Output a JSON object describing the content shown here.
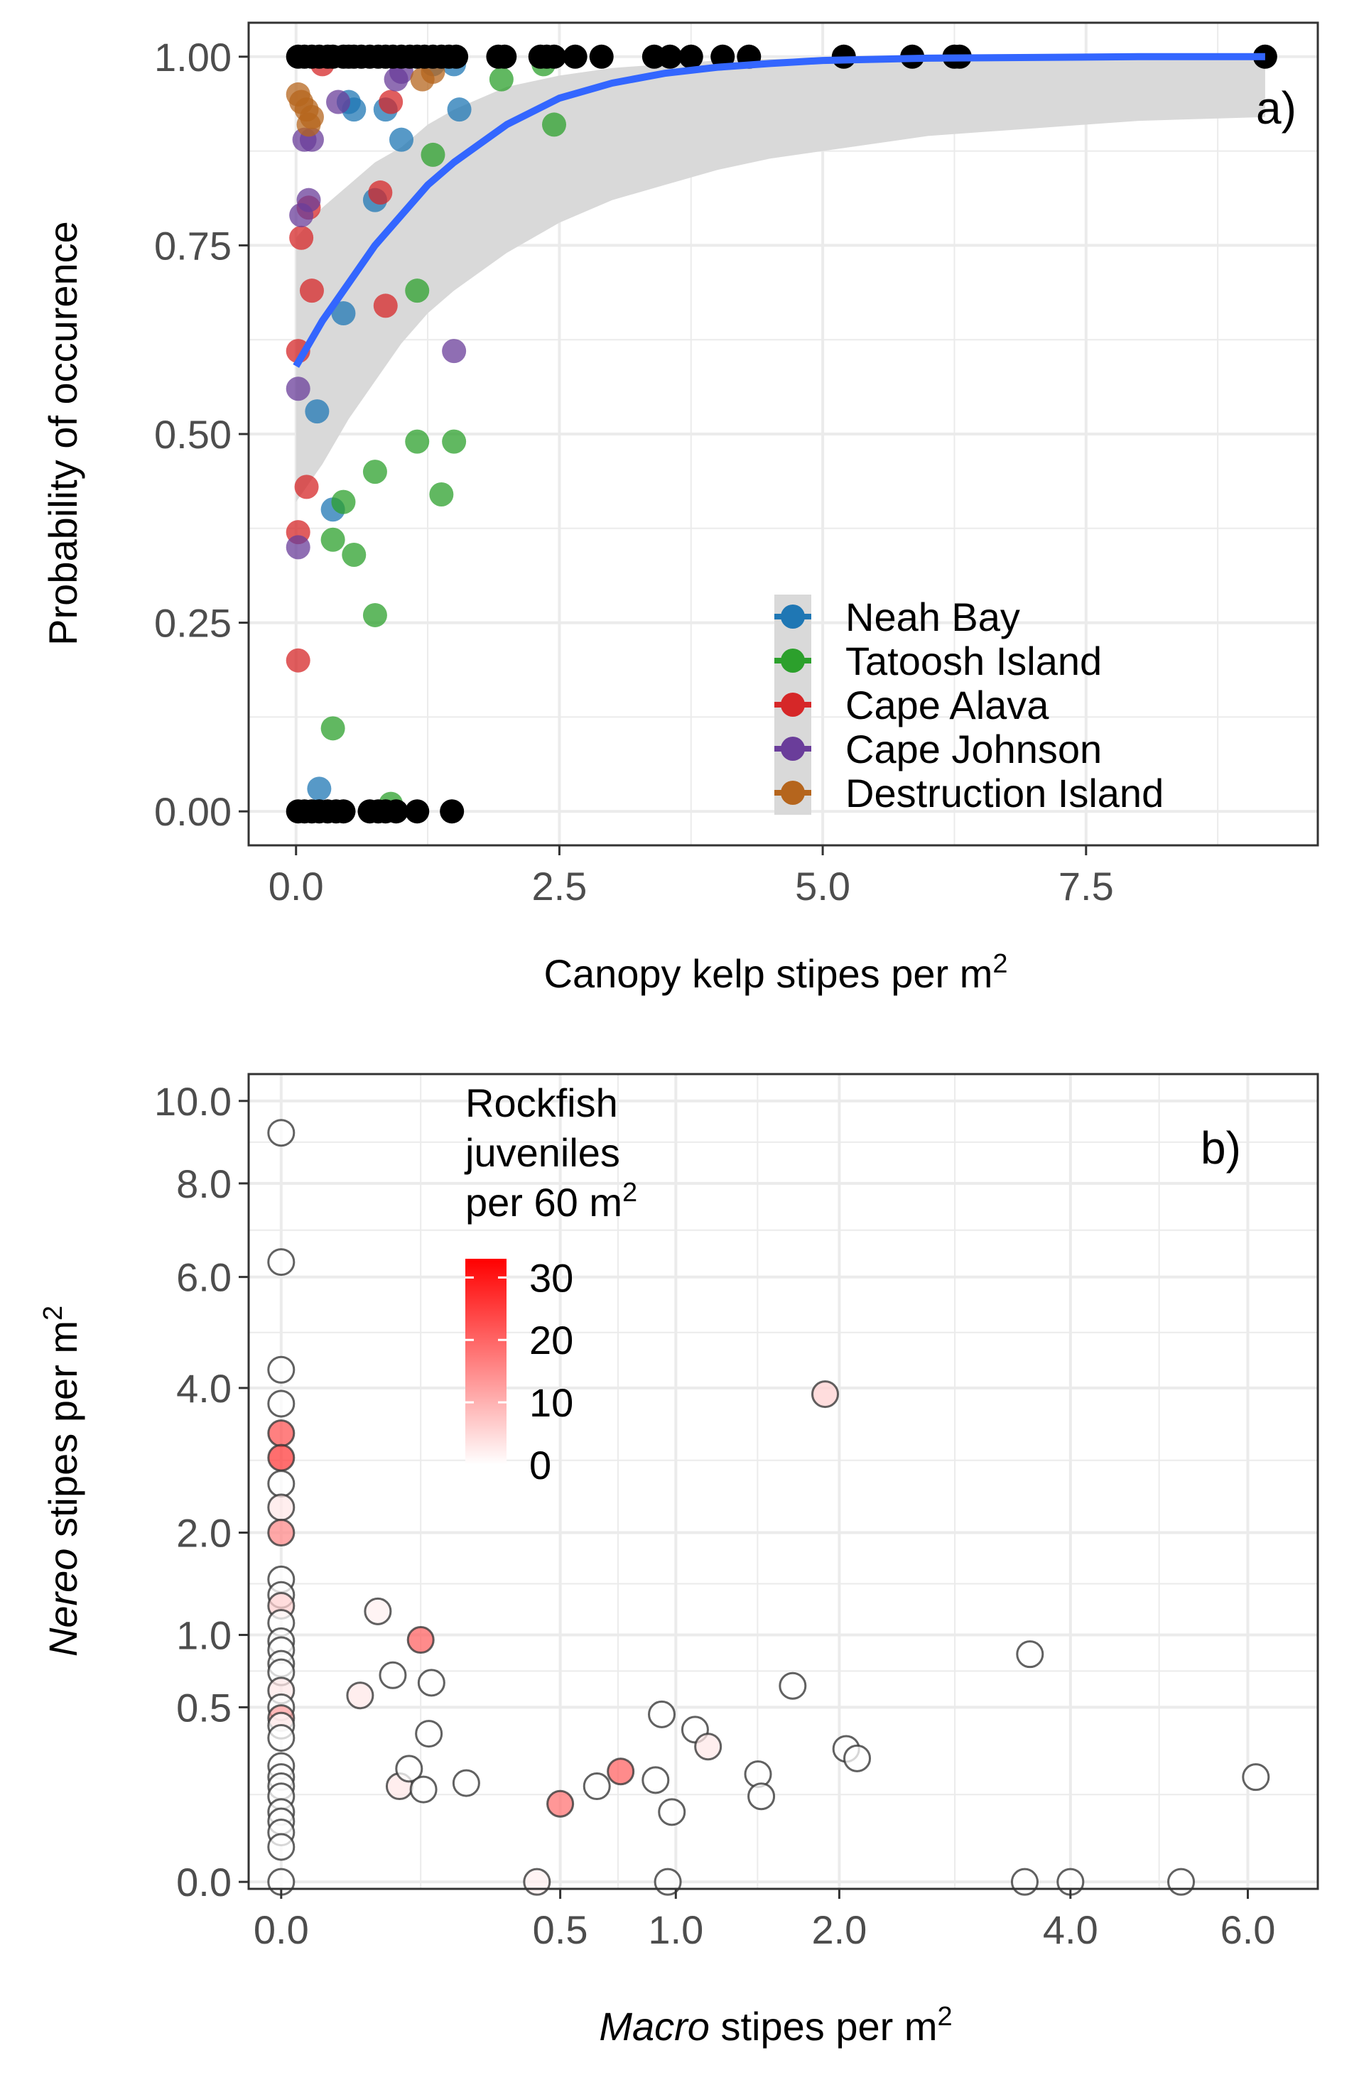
{
  "chart_data": [
    {
      "type": "scatter",
      "panel_label": "a)",
      "xlabel": "Canopy kelp stipes per m",
      "xlabel_superscript": "2",
      "ylabel": "Probability of occurence",
      "xlim": [
        -0.45,
        9.7
      ],
      "ylim": [
        -0.045,
        1.045
      ],
      "x_ticks": [
        0,
        2.5,
        5,
        7.5
      ],
      "x_tick_labels": [
        "0.0",
        "2.5",
        "5.0",
        "7.5"
      ],
      "y_ticks": [
        0,
        0.25,
        0.5,
        0.75,
        1
      ],
      "y_tick_labels": [
        "0.00",
        "0.25",
        "0.50",
        "0.75",
        "1.00"
      ],
      "grid": true,
      "legend_position": "bottom-right",
      "colors": {
        "observed": "#000000",
        "fit_line": "#3366FF",
        "ribbon": "#d9d9d9"
      },
      "series": [
        {
          "name": "Neah Bay",
          "color": "#1f77b4",
          "points": [
            [
              0.22,
              0.03
            ],
            [
              0.2,
              0.53
            ],
            [
              0.35,
              0.4
            ],
            [
              0.45,
              0.66
            ],
            [
              0.55,
              0.93
            ],
            [
              0.75,
              0.81
            ],
            [
              0.85,
              0.93
            ],
            [
              1.0,
              0.89
            ],
            [
              1.3,
              0.99
            ],
            [
              1.55,
              0.93
            ],
            [
              1.5,
              0.99
            ],
            [
              0.5,
              0.94
            ]
          ]
        },
        {
          "name": "Tatoosh Island",
          "color": "#2ca02c",
          "points": [
            [
              0.35,
              0.11
            ],
            [
              0.75,
              0.26
            ],
            [
              0.55,
              0.34
            ],
            [
              0.35,
              0.36
            ],
            [
              0.45,
              0.41
            ],
            [
              0.75,
              0.45
            ],
            [
              1.15,
              0.49
            ],
            [
              1.5,
              0.49
            ],
            [
              1.38,
              0.42
            ],
            [
              1.15,
              0.69
            ],
            [
              1.3,
              0.87
            ],
            [
              0.9,
              0.01
            ],
            [
              2.45,
              0.91
            ],
            [
              1.95,
              0.97
            ],
            [
              2.35,
              0.99
            ]
          ]
        },
        {
          "name": "Cape Alava",
          "color": "#d62728",
          "points": [
            [
              0.02,
              0.2
            ],
            [
              0.02,
              0.37
            ],
            [
              0.1,
              0.43
            ],
            [
              0.02,
              0.61
            ],
            [
              0.05,
              0.76
            ],
            [
              0.15,
              0.69
            ],
            [
              0.85,
              0.67
            ],
            [
              0.12,
              0.8
            ],
            [
              0.9,
              0.94
            ],
            [
              0.8,
              0.82
            ],
            [
              0.25,
              0.99
            ]
          ]
        },
        {
          "name": "Cape Johnson",
          "color": "#6a3d9a",
          "points": [
            [
              0.02,
              0.35
            ],
            [
              0.02,
              0.56
            ],
            [
              0.08,
              0.89
            ],
            [
              0.15,
              0.89
            ],
            [
              0.05,
              0.79
            ],
            [
              0.12,
              0.81
            ],
            [
              1.5,
              0.61
            ],
            [
              0.4,
              0.94
            ],
            [
              0.95,
              0.97
            ],
            [
              1.0,
              0.98
            ]
          ]
        },
        {
          "name": "Destruction Island",
          "color": "#b5651d",
          "points": [
            [
              0.02,
              0.95
            ],
            [
              0.05,
              0.94
            ],
            [
              0.1,
              0.93
            ],
            [
              0.12,
              0.91
            ],
            [
              0.15,
              0.92
            ],
            [
              1.2,
              0.97
            ],
            [
              1.3,
              0.98
            ]
          ]
        }
      ],
      "observed_x_at_1": [
        0.02,
        0.08,
        0.15,
        0.22,
        0.3,
        0.35,
        0.45,
        0.5,
        0.55,
        0.62,
        0.7,
        0.78,
        0.85,
        0.92,
        1.0,
        1.08,
        1.15,
        1.22,
        1.3,
        1.38,
        1.45,
        1.52,
        1.92,
        1.98,
        2.32,
        2.38,
        2.45,
        2.65,
        2.9,
        3.4,
        3.55,
        3.75,
        4.05,
        4.3,
        5.2,
        5.85,
        6.25,
        6.3,
        9.2
      ],
      "observed_x_at_0": [
        0.02,
        0.08,
        0.15,
        0.22,
        0.3,
        0.38,
        0.45,
        0.7,
        0.78,
        0.85,
        0.95,
        1.15,
        1.48
      ],
      "fit_curve": {
        "x": [
          0,
          0.25,
          0.5,
          0.75,
          1,
          1.25,
          1.5,
          2,
          2.5,
          3,
          3.5,
          4,
          4.5,
          5,
          6,
          7,
          8,
          9.2
        ],
        "y": [
          0.59,
          0.65,
          0.7,
          0.75,
          0.79,
          0.83,
          0.86,
          0.91,
          0.945,
          0.965,
          0.978,
          0.986,
          0.991,
          0.995,
          0.998,
          0.999,
          1.0,
          1.0
        ]
      },
      "ci_band": {
        "x": [
          0,
          0.25,
          0.5,
          0.75,
          1,
          1.25,
          1.5,
          2,
          2.5,
          3,
          3.5,
          4,
          4.5,
          5,
          6,
          7,
          8,
          9.2
        ],
        "lower": [
          0.41,
          0.46,
          0.52,
          0.57,
          0.62,
          0.66,
          0.69,
          0.74,
          0.78,
          0.81,
          0.83,
          0.85,
          0.865,
          0.875,
          0.895,
          0.905,
          0.915,
          0.92
        ],
        "upper": [
          0.76,
          0.8,
          0.83,
          0.86,
          0.88,
          0.91,
          0.93,
          0.96,
          0.975,
          0.985,
          0.99,
          0.995,
          0.997,
          0.998,
          1.0,
          1.0,
          1.0,
          1.0
        ]
      }
    },
    {
      "type": "scatter",
      "panel_label": "b)",
      "xlabel_italic": "Macro",
      "xlabel_rest": " stipes per m",
      "xlabel_superscript": "2",
      "ylabel_italic": "Nereo",
      "ylabel_rest": " stipes per m",
      "ylabel_superscript": "2",
      "xscale": "sqrt",
      "yscale": "sqrt",
      "xlim": [
        -0.0068,
        6.9
      ],
      "ylim": [
        -0.0008,
        10.7
      ],
      "x_ticks": [
        0,
        0.5,
        1,
        2,
        4,
        6
      ],
      "x_tick_labels": [
        "0.0",
        "0.5",
        "1.0",
        "2.0",
        "4.0",
        "6.0"
      ],
      "y_ticks": [
        0,
        0.5,
        1,
        2,
        4,
        6,
        8,
        10
      ],
      "y_tick_labels": [
        "0.0",
        "0.5",
        "1.0",
        "2.0",
        "4.0",
        "6.0",
        "8.0",
        "10.0"
      ],
      "grid": true,
      "legend_position": "top-left",
      "legend_title_lines": [
        "Rockfish",
        "juveniles",
        "per 60 m"
      ],
      "legend_title_superscript": "2",
      "colorbar_ticks": [
        0,
        10,
        20,
        30
      ],
      "colorbar_labels": [
        "0",
        "10",
        "20",
        "30"
      ],
      "color_scale": {
        "low": "#ffffff",
        "high": "#ff0000",
        "min": 0,
        "max": 33
      },
      "points": [
        {
          "x": 0,
          "y": 9.2,
          "c": 0
        },
        {
          "x": 0,
          "y": 6.3,
          "c": 0
        },
        {
          "x": 0,
          "y": 4.3,
          "c": 0
        },
        {
          "x": 0,
          "y": 3.75,
          "c": 0
        },
        {
          "x": 0,
          "y": 3.3,
          "c": 22
        },
        {
          "x": 0,
          "y": 2.95,
          "c": 25
        },
        {
          "x": 0,
          "y": 2.6,
          "c": 0
        },
        {
          "x": 0,
          "y": 2.3,
          "c": 3
        },
        {
          "x": 0,
          "y": 2.0,
          "c": 15
        },
        {
          "x": 0,
          "y": 1.5,
          "c": 0
        },
        {
          "x": 0,
          "y": 1.35,
          "c": 0
        },
        {
          "x": 0,
          "y": 1.25,
          "c": 6
        },
        {
          "x": 0,
          "y": 1.1,
          "c": 0
        },
        {
          "x": 0,
          "y": 0.95,
          "c": 0
        },
        {
          "x": 0,
          "y": 0.88,
          "c": 0
        },
        {
          "x": 0,
          "y": 0.78,
          "c": 0
        },
        {
          "x": 0,
          "y": 0.72,
          "c": 0
        },
        {
          "x": 0,
          "y": 0.6,
          "c": 3
        },
        {
          "x": 0,
          "y": 0.5,
          "c": 0
        },
        {
          "x": 0,
          "y": 0.44,
          "c": 12
        },
        {
          "x": 0,
          "y": 0.4,
          "c": 0
        },
        {
          "x": 0,
          "y": 0.34,
          "c": 0
        },
        {
          "x": 0,
          "y": 0.22,
          "c": 0
        },
        {
          "x": 0,
          "y": 0.18,
          "c": 0
        },
        {
          "x": 0,
          "y": 0.15,
          "c": 0
        },
        {
          "x": 0,
          "y": 0.12,
          "c": 0
        },
        {
          "x": 0,
          "y": 0.08,
          "c": 0
        },
        {
          "x": 0,
          "y": 0.06,
          "c": 0
        },
        {
          "x": 0,
          "y": 0.04,
          "c": 0
        },
        {
          "x": 0,
          "y": 0.02,
          "c": 0
        },
        {
          "x": 0,
          "y": 0.0,
          "c": 0
        },
        {
          "x": 0.04,
          "y": 0.57,
          "c": 3
        },
        {
          "x": 0.06,
          "y": 1.2,
          "c": 2
        },
        {
          "x": 0.08,
          "y": 0.7,
          "c": 0
        },
        {
          "x": 0.09,
          "y": 0.15,
          "c": 3
        },
        {
          "x": 0.105,
          "y": 0.21,
          "c": 0
        },
        {
          "x": 0.125,
          "y": 0.96,
          "c": 20
        },
        {
          "x": 0.13,
          "y": 0.14,
          "c": 0
        },
        {
          "x": 0.14,
          "y": 0.36,
          "c": 0
        },
        {
          "x": 0.145,
          "y": 0.65,
          "c": 0
        },
        {
          "x": 0.22,
          "y": 0.16,
          "c": 0
        },
        {
          "x": 0.42,
          "y": 0.0,
          "c": 2
        },
        {
          "x": 0.5,
          "y": 0.1,
          "c": 18
        },
        {
          "x": 0.64,
          "y": 0.15,
          "c": 0
        },
        {
          "x": 0.74,
          "y": 0.2,
          "c": 20
        },
        {
          "x": 0.9,
          "y": 0.17,
          "c": 0
        },
        {
          "x": 0.93,
          "y": 0.46,
          "c": 0
        },
        {
          "x": 0.96,
          "y": 0.0,
          "c": 0
        },
        {
          "x": 0.98,
          "y": 0.08,
          "c": 0
        },
        {
          "x": 1.1,
          "y": 0.38,
          "c": 0
        },
        {
          "x": 1.17,
          "y": 0.3,
          "c": 3
        },
        {
          "x": 1.46,
          "y": 0.19,
          "c": 0
        },
        {
          "x": 1.48,
          "y": 0.12,
          "c": 0
        },
        {
          "x": 1.68,
          "y": 0.63,
          "c": 0
        },
        {
          "x": 1.9,
          "y": 3.9,
          "c": 6
        },
        {
          "x": 2.05,
          "y": 0.29,
          "c": 0
        },
        {
          "x": 2.13,
          "y": 0.25,
          "c": 0
        },
        {
          "x": 3.6,
          "y": 0.85,
          "c": 0
        },
        {
          "x": 3.55,
          "y": 0.0,
          "c": 0
        },
        {
          "x": 4.0,
          "y": 0.0,
          "c": 0
        },
        {
          "x": 5.2,
          "y": 0.0,
          "c": 0
        },
        {
          "x": 6.1,
          "y": 0.18,
          "c": 0
        }
      ]
    }
  ]
}
